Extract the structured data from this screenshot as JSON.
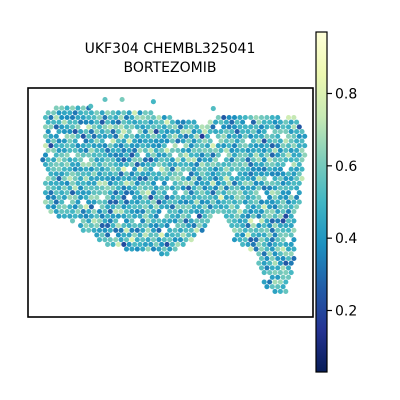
{
  "chart_data": {
    "type": "scatter",
    "title_lines": [
      "UKF304 CHEMBL325041",
      "BORTEZOMIB"
    ],
    "xlabel": "",
    "ylabel": "",
    "grid": false,
    "legend": "none",
    "colormap": "YlGnBu",
    "colormap_stops": [
      "#081d58",
      "#253494",
      "#225ea8",
      "#1d91c0",
      "#41b6c4",
      "#7fcdbb",
      "#c7e9b4",
      "#edf8b1",
      "#ffffd9"
    ],
    "colorbar": {
      "range": [
        0.03,
        0.97
      ],
      "ticks": [
        0.2,
        0.4,
        0.6,
        0.8
      ],
      "tick_labels": [
        "0.2",
        "0.4",
        "0.6",
        "0.8"
      ]
    },
    "spots": {
      "description": "hexagonal grid of tissue spots, each colored by a value in the colorbar range",
      "region_outline": [
        [
          0.06,
          0.1
        ],
        [
          0.12,
          0.08
        ],
        [
          0.4,
          0.1
        ],
        [
          0.63,
          0.16
        ],
        [
          0.66,
          0.12
        ],
        [
          0.93,
          0.12
        ],
        [
          0.98,
          0.2
        ],
        [
          0.96,
          0.45
        ],
        [
          0.94,
          0.63
        ],
        [
          0.93,
          0.83
        ],
        [
          0.9,
          0.9
        ],
        [
          0.83,
          0.88
        ],
        [
          0.8,
          0.73
        ],
        [
          0.72,
          0.66
        ],
        [
          0.7,
          0.58
        ],
        [
          0.66,
          0.54
        ],
        [
          0.62,
          0.62
        ],
        [
          0.5,
          0.73
        ],
        [
          0.38,
          0.71
        ],
        [
          0.3,
          0.7
        ],
        [
          0.2,
          0.63
        ],
        [
          0.16,
          0.59
        ],
        [
          0.1,
          0.56
        ],
        [
          0.06,
          0.52
        ],
        [
          0.05,
          0.3
        ],
        [
          0.06,
          0.18
        ]
      ],
      "value_mean": 0.5,
      "value_spread": 0.16
    }
  }
}
